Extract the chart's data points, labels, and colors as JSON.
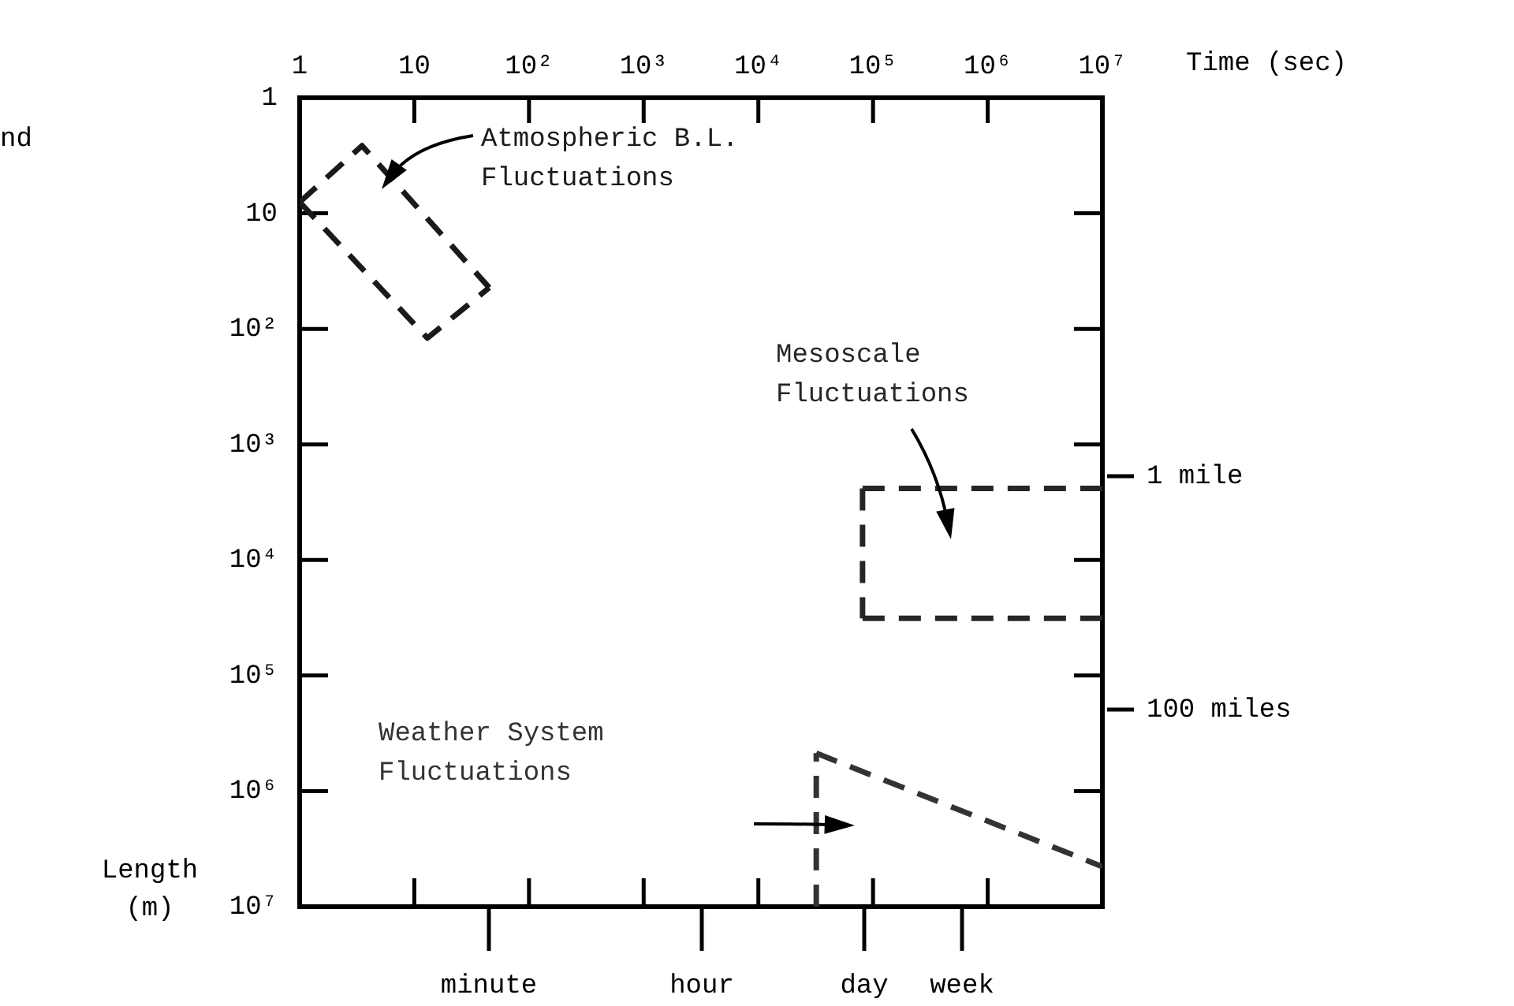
{
  "chart_data": {
    "type": "line",
    "xlabel": "Time (sec)",
    "ylabel": "Length (m)",
    "log": "xy",
    "line_style": "dashed",
    "marker": "none",
    "xlim": [
      1,
      10000000
    ],
    "xticks": [
      1,
      10,
      {
        "value": 100,
        "label": "10²"
      },
      {
        "value": 1000,
        "label": "10³"
      },
      {
        "value": 10000,
        "label": "10⁴"
      },
      {
        "value": 100000,
        "label": "10⁵"
      },
      {
        "value": 1000000,
        "label": "10⁶"
      },
      {
        "value": 10000000,
        "label": "10⁷"
      }
    ],
    "ylim": [
      10000000,
      1
    ],
    "yticks": [
      1,
      10,
      {
        "value": 100,
        "label": "10²"
      },
      {
        "value": 1000,
        "label": "10³"
      },
      {
        "value": 10000,
        "label": "10⁴"
      },
      {
        "value": 100000,
        "label": "10⁵"
      },
      {
        "value": 1000000,
        "label": "10⁶"
      },
      {
        "value": 10000000,
        "label": "10⁷"
      }
    ],
    "annotations": [
      "nd",
      "1 mile",
      "100 miles",
      "minute",
      "hour",
      "day",
      "week"
    ],
    "series": [
      {
        "name": "Atmospheric B.L. Fluctuations",
        "color": "#1a1a1a",
        "x": [
          1,
          3.5,
          45
        ],
        "values": [
          8,
          2.6,
          44
        ]
      },
      {
        "color": "#1a1a1a",
        "x": [
          1,
          13,
          45
        ],
        "values": [
          8,
          120,
          44
        ]
      },
      {
        "name": "Mesoscale Fluctuations",
        "color": "#262626",
        "x": [
          81000,
          10000000
        ],
        "values": [
          2400,
          2400
        ]
      },
      {
        "color": "#262626",
        "x": [
          81000,
          81000
        ],
        "values": [
          2400,
          32000
        ]
      },
      {
        "color": "#262626",
        "x": [
          81000,
          10000000
        ],
        "values": [
          32000,
          32000
        ]
      },
      {
        "name": "Weather System Fluctuations",
        "color": "#333333",
        "x": [
          32000,
          10000000
        ],
        "values": [
          470000,
          4500000
        ]
      },
      {
        "color": "#333333",
        "x": [
          32000,
          32000
        ],
        "values": [
          10000000,
          470000
        ]
      }
    ]
  }
}
